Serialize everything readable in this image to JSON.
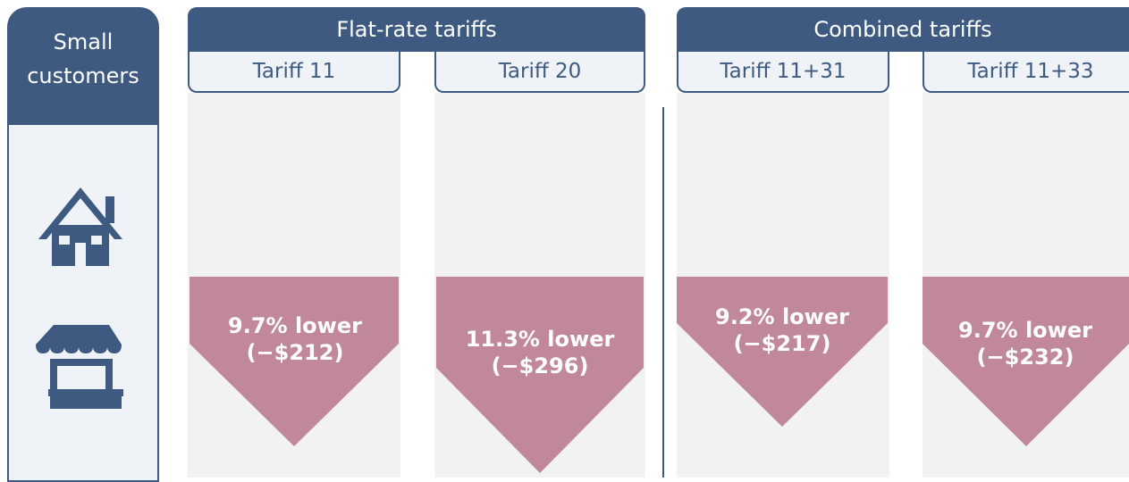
{
  "side_header": "Small customers",
  "groups": [
    {
      "title": "Flat-rate tariffs",
      "tariffs": [
        {
          "name": "Tariff 11",
          "change": "9.7% lower",
          "amount": "(−$212)"
        },
        {
          "name": "Tariff 20",
          "change": "11.3% lower",
          "amount": "(−$296)"
        }
      ]
    },
    {
      "title": "Combined tariffs",
      "tariffs": [
        {
          "name": "Tariff 11+31",
          "change": "9.2% lower",
          "amount": "(−$217)"
        },
        {
          "name": "Tariff 11+33",
          "change": "9.7% lower",
          "amount": "(−$232)"
        }
      ]
    }
  ]
}
